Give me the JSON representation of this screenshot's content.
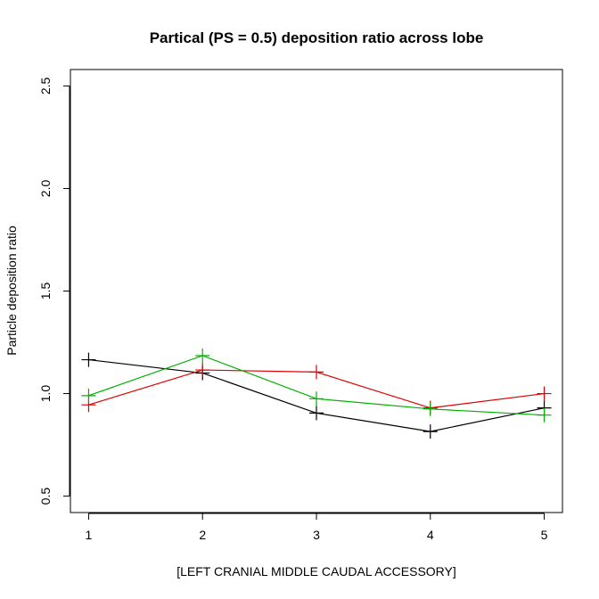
{
  "chart_data": {
    "type": "line",
    "title": "Partical (PS = 0.5) deposition ratio across lobe",
    "xlabel": "[LEFT  CRANIAL  MIDDLE  CAUDAL  ACCESSORY]",
    "ylabel": "Particle deposition ratio",
    "x": [
      1,
      2,
      3,
      4,
      5
    ],
    "xlim": [
      0.84,
      5.16
    ],
    "ylim": [
      0.42,
      2.58
    ],
    "xticks": [
      "1",
      "2",
      "3",
      "4",
      "5"
    ],
    "yticks": [
      "0.5",
      "1.0",
      "1.5",
      "2.0",
      "2.5"
    ],
    "xtick_values": [
      1,
      2,
      3,
      4,
      5
    ],
    "ytick_values": [
      0.5,
      1.0,
      1.5,
      2.0,
      2.5
    ],
    "grid": false,
    "marker": "plus",
    "series": [
      {
        "color": "#000000",
        "values": [
          1.165,
          1.1,
          0.905,
          0.815,
          0.93
        ]
      },
      {
        "color": "#df0000",
        "values": [
          0.945,
          1.115,
          1.105,
          0.93,
          1.0
        ]
      },
      {
        "color": "#00b000",
        "values": [
          0.99,
          1.185,
          0.975,
          0.925,
          0.895
        ]
      }
    ]
  }
}
